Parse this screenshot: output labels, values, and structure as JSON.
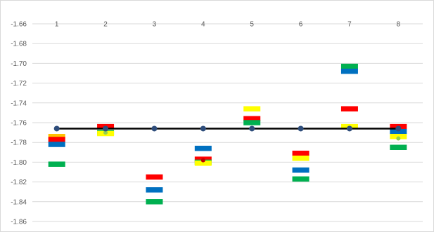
{
  "chart_data": {
    "type": "line",
    "title": "",
    "xlabel": "",
    "ylabel": "",
    "categories": [
      "1",
      "2",
      "3",
      "4",
      "5",
      "6",
      "7",
      "8"
    ],
    "ylim": [
      -1.86,
      -1.66
    ],
    "yticks": [
      "-1.66",
      "-1.68",
      "-1.70",
      "-1.72",
      "-1.74",
      "-1.76",
      "-1.78",
      "-1.80",
      "-1.82",
      "-1.84",
      "-1.86"
    ],
    "grid": true,
    "legend": "none",
    "x_axis_position": "top",
    "reference_line": {
      "value": -1.766,
      "color": "#000000"
    },
    "marker_series": {
      "values": [
        -1.766,
        -1.766,
        -1.766,
        -1.766,
        -1.766,
        -1.766,
        -1.766,
        -1.766
      ],
      "color": "#2e4d7b"
    },
    "bars": [
      [
        {
          "color": "#ffc000",
          "value": -1.774
        },
        {
          "color": "#ff0000",
          "value": -1.777
        },
        {
          "color": "#0070c0",
          "value": -1.782
        },
        {
          "color": "#00b050",
          "value": -1.802
        }
      ],
      [
        {
          "color": "#ff0000",
          "value": -1.764
        },
        {
          "color": "#00b050",
          "value": -1.77
        },
        {
          "color": "#ffff00",
          "value": -1.771
        }
      ],
      [
        {
          "color": "#ff0000",
          "value": -1.815
        },
        {
          "color": "#0070c0",
          "value": -1.828
        },
        {
          "color": "#00b050",
          "value": -1.84
        }
      ],
      [
        {
          "color": "#0070c0",
          "value": -1.786
        },
        {
          "color": "#ff0000",
          "value": -1.797
        },
        {
          "color": "#00b050",
          "value": -1.8
        },
        {
          "color": "#ffff00",
          "value": -1.801
        }
      ],
      [
        {
          "color": "#ffff00",
          "value": -1.746
        },
        {
          "color": "#ff0000",
          "value": -1.756
        },
        {
          "color": "#00b050",
          "value": -1.76
        }
      ],
      [
        {
          "color": "#ff0000",
          "value": -1.791
        },
        {
          "color": "#ffff00",
          "value": -1.796
        },
        {
          "color": "#0070c0",
          "value": -1.808
        },
        {
          "color": "#00b050",
          "value": -1.817
        }
      ],
      [
        {
          "color": "#00b050",
          "value": -1.703
        },
        {
          "color": "#0070c0",
          "value": -1.708
        },
        {
          "color": "#ff0000",
          "value": -1.746
        },
        {
          "color": "#ffff00",
          "value": -1.764
        }
      ],
      [
        {
          "color": "#ff0000",
          "value": -1.764
        },
        {
          "color": "#0070c0",
          "value": -1.769
        },
        {
          "color": "#ffff00",
          "value": -1.774
        },
        {
          "color": "#00b050",
          "value": -1.785
        }
      ]
    ],
    "extra_points": [
      {
        "category": "2",
        "value": -1.77,
        "color": "#92d050"
      },
      {
        "category": "4",
        "value": -1.798,
        "color": "#c00000"
      },
      {
        "category": "7",
        "value": -1.766,
        "color": "#a5a5a5"
      },
      {
        "category": "8",
        "value": -1.776,
        "color": "#92d050"
      }
    ]
  }
}
